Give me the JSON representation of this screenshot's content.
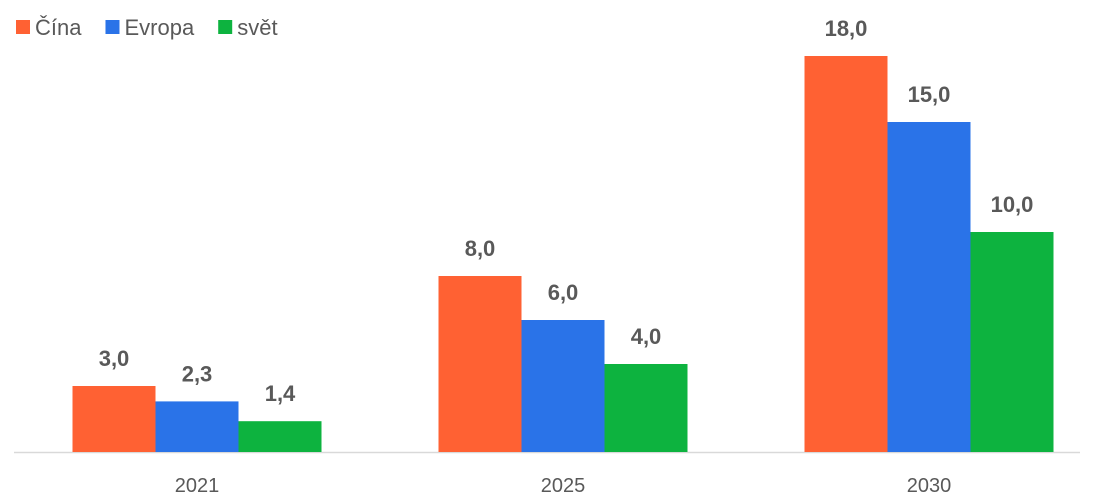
{
  "chart_data": {
    "type": "bar",
    "categories": [
      "2021",
      "2025",
      "2030"
    ],
    "series": [
      {
        "name": "Čína",
        "color": "#ff6133",
        "values": [
          3.0,
          8.0,
          18.0
        ],
        "value_labels": [
          "3,0",
          "8,0",
          "18,0"
        ]
      },
      {
        "name": "Evropa",
        "color": "#2a73e8",
        "values": [
          2.3,
          6.0,
          15.0
        ],
        "value_labels": [
          "2,3",
          "6,0",
          "15,0"
        ]
      },
      {
        "name": "svět",
        "color": "#0db33f",
        "values": [
          1.4,
          4.0,
          10.0
        ],
        "value_labels": [
          "1,4",
          "4,0",
          "10,0"
        ]
      }
    ],
    "legend": "top-left"
  }
}
